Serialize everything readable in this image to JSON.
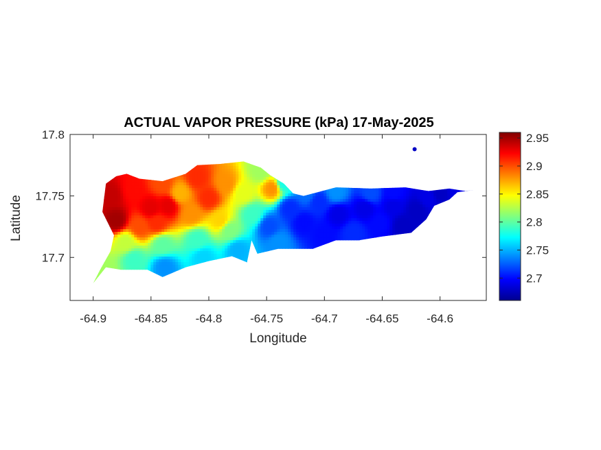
{
  "chart_data": {
    "type": "heatmap",
    "title": "ACTUAL VAPOR PRESSURE (kPa) 17-May-2025",
    "xlabel": "Longitude",
    "ylabel": "Latitude",
    "xlim": [
      -64.92,
      -64.56
    ],
    "ylim": [
      17.665,
      17.8
    ],
    "xticks": [
      -64.9,
      -64.85,
      -64.8,
      -64.75,
      -64.7,
      -64.65,
      -64.6
    ],
    "xtick_labels": [
      "-64.9",
      "-64.85",
      "-64.8",
      "-64.75",
      "-64.7",
      "-64.65",
      "-64.6"
    ],
    "yticks": [
      17.7,
      17.75,
      17.8
    ],
    "ytick_labels": [
      "17.7",
      "17.75",
      "17.8"
    ],
    "colorbar": {
      "colormap": "jet",
      "range": [
        2.66,
        2.96
      ],
      "ticks": [
        2.7,
        2.75,
        2.8,
        2.85,
        2.9,
        2.95
      ],
      "tick_labels": [
        "2.7",
        "2.75",
        "2.8",
        "2.85",
        "2.9",
        "2.95"
      ]
    },
    "grid": false,
    "outline": [
      [
        -64.9,
        17.679
      ],
      [
        -64.889,
        17.692
      ],
      [
        -64.876,
        17.69
      ],
      [
        -64.853,
        17.69
      ],
      [
        -64.84,
        17.684
      ],
      [
        -64.82,
        17.692
      ],
      [
        -64.8,
        17.697
      ],
      [
        -64.78,
        17.701
      ],
      [
        -64.767,
        17.696
      ],
      [
        -64.763,
        17.714
      ],
      [
        -64.758,
        17.703
      ],
      [
        -64.74,
        17.707
      ],
      [
        -64.71,
        17.707
      ],
      [
        -64.69,
        17.714
      ],
      [
        -64.67,
        17.714
      ],
      [
        -64.65,
        17.717
      ],
      [
        -64.625,
        17.72
      ],
      [
        -64.612,
        17.731
      ],
      [
        -64.605,
        17.742
      ],
      [
        -64.592,
        17.747
      ],
      [
        -64.585,
        17.753
      ],
      [
        -64.57,
        17.755
      ],
      [
        -64.578,
        17.754
      ],
      [
        -64.592,
        17.756
      ],
      [
        -64.61,
        17.754
      ],
      [
        -64.63,
        17.757
      ],
      [
        -64.66,
        17.756
      ],
      [
        -64.69,
        17.757
      ],
      [
        -64.718,
        17.75
      ],
      [
        -64.727,
        17.752
      ],
      [
        -64.735,
        17.76
      ],
      [
        -64.747,
        17.767
      ],
      [
        -64.755,
        17.773
      ],
      [
        -64.77,
        17.778
      ],
      [
        -64.79,
        17.776
      ],
      [
        -64.81,
        17.775
      ],
      [
        -64.82,
        17.768
      ],
      [
        -64.84,
        17.762
      ],
      [
        -64.86,
        17.764
      ],
      [
        -64.871,
        17.768
      ],
      [
        -64.88,
        17.766
      ],
      [
        -64.889,
        17.76
      ],
      [
        -64.892,
        17.737
      ],
      [
        -64.882,
        17.718
      ],
      [
        -64.885,
        17.705
      ],
      [
        -64.894,
        17.69
      ]
    ],
    "islet": [
      -64.622,
      17.788
    ],
    "stations": [
      [
        -64.885,
        17.75,
        2.94
      ],
      [
        -64.88,
        17.73,
        2.95
      ],
      [
        -64.865,
        17.755,
        2.92
      ],
      [
        -64.85,
        17.74,
        2.93
      ],
      [
        -64.84,
        17.76,
        2.9
      ],
      [
        -64.835,
        17.742,
        2.93
      ],
      [
        -64.845,
        17.728,
        2.91
      ],
      [
        -64.86,
        17.725,
        2.9
      ],
      [
        -64.825,
        17.752,
        2.87
      ],
      [
        -64.81,
        17.765,
        2.91
      ],
      [
        -64.8,
        17.748,
        2.91
      ],
      [
        -64.785,
        17.76,
        2.88
      ],
      [
        -64.815,
        17.735,
        2.88
      ],
      [
        -64.79,
        17.73,
        2.86
      ],
      [
        -64.77,
        17.752,
        2.84
      ],
      [
        -64.745,
        17.756,
        2.88
      ],
      [
        -64.755,
        17.77,
        2.82
      ],
      [
        -64.735,
        17.76,
        2.78
      ],
      [
        -64.872,
        17.712,
        2.83
      ],
      [
        -64.84,
        17.71,
        2.8
      ],
      [
        -64.81,
        17.714,
        2.79
      ],
      [
        -64.782,
        17.722,
        2.81
      ],
      [
        -64.89,
        17.69,
        2.82
      ],
      [
        -64.865,
        17.698,
        2.79
      ],
      [
        -64.838,
        17.692,
        2.74
      ],
      [
        -64.805,
        17.7,
        2.76
      ],
      [
        -64.775,
        17.706,
        2.75
      ],
      [
        -64.762,
        17.735,
        2.79
      ],
      [
        -64.748,
        17.725,
        2.72
      ],
      [
        -64.74,
        17.712,
        2.74
      ],
      [
        -64.73,
        17.74,
        2.71
      ],
      [
        -64.718,
        17.728,
        2.7
      ],
      [
        -64.705,
        17.745,
        2.71
      ],
      [
        -64.7,
        17.718,
        2.7
      ],
      [
        -64.688,
        17.735,
        2.69
      ],
      [
        -64.675,
        17.72,
        2.71
      ],
      [
        -64.665,
        17.74,
        2.69
      ],
      [
        -64.652,
        17.728,
        2.7
      ],
      [
        -64.64,
        17.742,
        2.69
      ],
      [
        -64.632,
        17.726,
        2.68
      ],
      [
        -64.62,
        17.738,
        2.68
      ],
      [
        -64.61,
        17.748,
        2.69
      ],
      [
        -64.6,
        17.752,
        2.68
      ],
      [
        -64.585,
        17.754,
        2.69
      ],
      [
        -64.715,
        17.752,
        2.73
      ],
      [
        -64.69,
        17.753,
        2.74
      ],
      [
        -64.66,
        17.752,
        2.72
      ],
      [
        -64.64,
        17.752,
        2.7
      ],
      [
        -64.622,
        17.788,
        2.68
      ]
    ]
  }
}
